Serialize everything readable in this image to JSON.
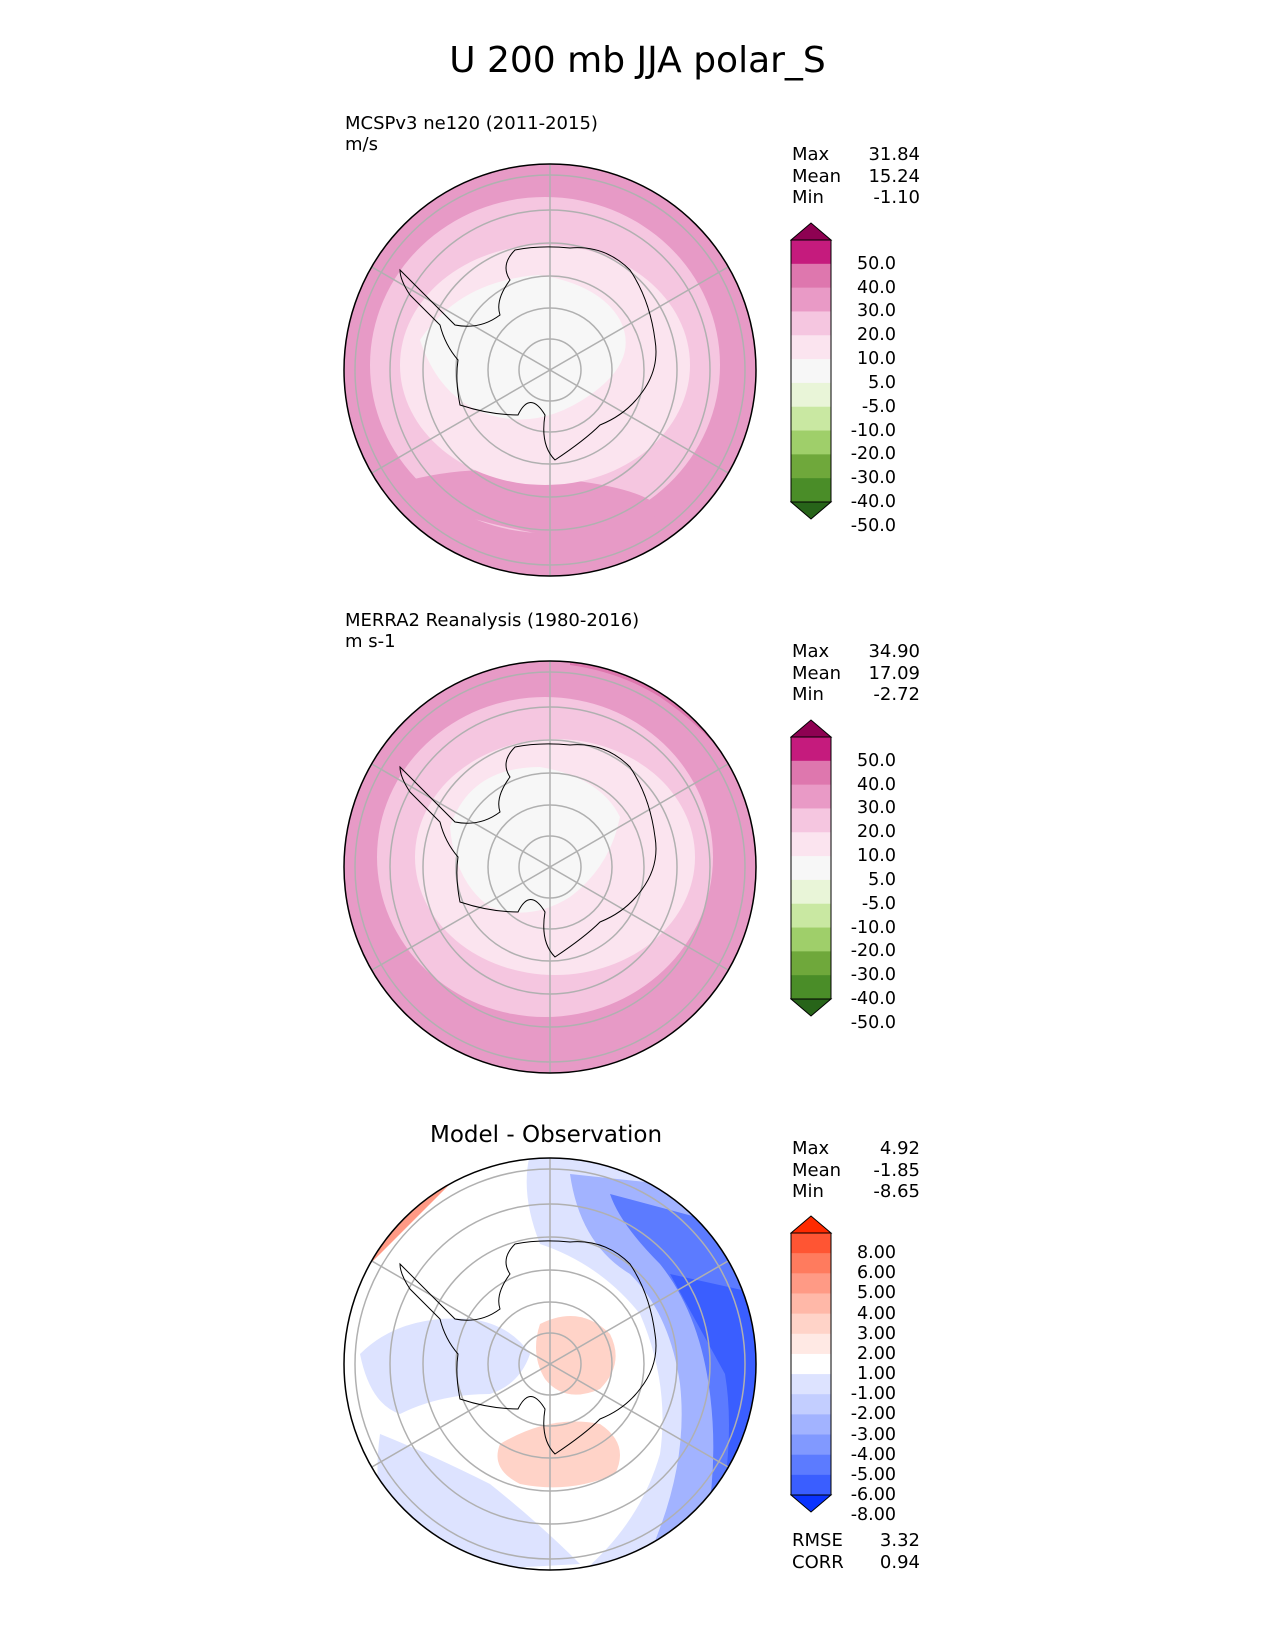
{
  "figure_title": "U 200 mb JJA polar_S",
  "panels": [
    {
      "name": "model",
      "title_line1": "MCSPv3 ne120 (2011-2015)",
      "title_line2": "m/s",
      "stats": [
        {
          "label": "Max",
          "value": "31.84"
        },
        {
          "label": "Mean",
          "value": "15.24"
        },
        {
          "label": "Min",
          "value": "-1.10"
        }
      ]
    },
    {
      "name": "obs",
      "title_line1": "MERRA2 Reanalysis (1980-2016)",
      "title_line2": "m s-1",
      "stats": [
        {
          "label": "Max",
          "value": "34.90"
        },
        {
          "label": "Mean",
          "value": "17.09"
        },
        {
          "label": "Min",
          "value": "-2.72"
        }
      ]
    },
    {
      "name": "diff",
      "center_title": "Model - Observation",
      "stats": [
        {
          "label": "Max",
          "value": "4.92"
        },
        {
          "label": "Mean",
          "value": "-1.85"
        },
        {
          "label": "Min",
          "value": "-8.65"
        }
      ],
      "extra_stats": [
        {
          "label": "RMSE",
          "value": "3.32"
        },
        {
          "label": "CORR",
          "value": "0.94"
        }
      ]
    }
  ],
  "colorbars": {
    "field": {
      "ticks": [
        "50.0",
        "40.0",
        "30.0",
        "20.0",
        "10.0",
        "5.0",
        "-5.0",
        "-10.0",
        "-20.0",
        "-30.0",
        "-40.0",
        "-50.0"
      ],
      "colors": [
        "#8e0152",
        "#c51b7d",
        "#de77ae",
        "#e99ac6",
        "#f5c6e0",
        "#fbe4ef",
        "#f7f7f7",
        "#e9f5d8",
        "#c9e8a2",
        "#9fcf6a",
        "#6fa83b",
        "#4a8d28",
        "#276419"
      ]
    },
    "diff": {
      "ticks": [
        "8.00",
        "6.00",
        "5.00",
        "4.00",
        "3.00",
        "2.00",
        "1.00",
        "-1.00",
        "-2.00",
        "-3.00",
        "-4.00",
        "-5.00",
        "-6.00",
        "-8.00"
      ],
      "colors": [
        "#ff2a00",
        "#ff5533",
        "#ff7b5e",
        "#ff9a85",
        "#ffb8a8",
        "#ffd3c8",
        "#ffe9e4",
        "#ffffff",
        "#dde3ff",
        "#c3ceff",
        "#a2b3ff",
        "#8199ff",
        "#5c7bff",
        "#3a5eff",
        "#0a33ff"
      ]
    }
  },
  "chart_data": [
    {
      "type": "heatmap",
      "title": "MCSPv3 ne120 (2011-2015)",
      "units": "m/s",
      "projection": "south polar stereographic",
      "levels": [
        -50,
        -40,
        -30,
        -20,
        -10,
        -5,
        5,
        10,
        20,
        30,
        40,
        50
      ],
      "max": 31.84,
      "mean": 15.24,
      "min": -1.1
    },
    {
      "type": "heatmap",
      "title": "MERRA2 Reanalysis (1980-2016)",
      "units": "m s-1",
      "projection": "south polar stereographic",
      "levels": [
        -50,
        -40,
        -30,
        -20,
        -10,
        -5,
        5,
        10,
        20,
        30,
        40,
        50
      ],
      "max": 34.9,
      "mean": 17.09,
      "min": -2.72
    },
    {
      "type": "heatmap",
      "title": "Model - Observation",
      "projection": "south polar stereographic",
      "levels": [
        -8,
        -6,
        -5,
        -4,
        -3,
        -2,
        -1,
        1,
        2,
        3,
        4,
        5,
        6,
        8
      ],
      "max": 4.92,
      "mean": -1.85,
      "min": -8.65,
      "rmse": 3.32,
      "corr": 0.94
    }
  ]
}
